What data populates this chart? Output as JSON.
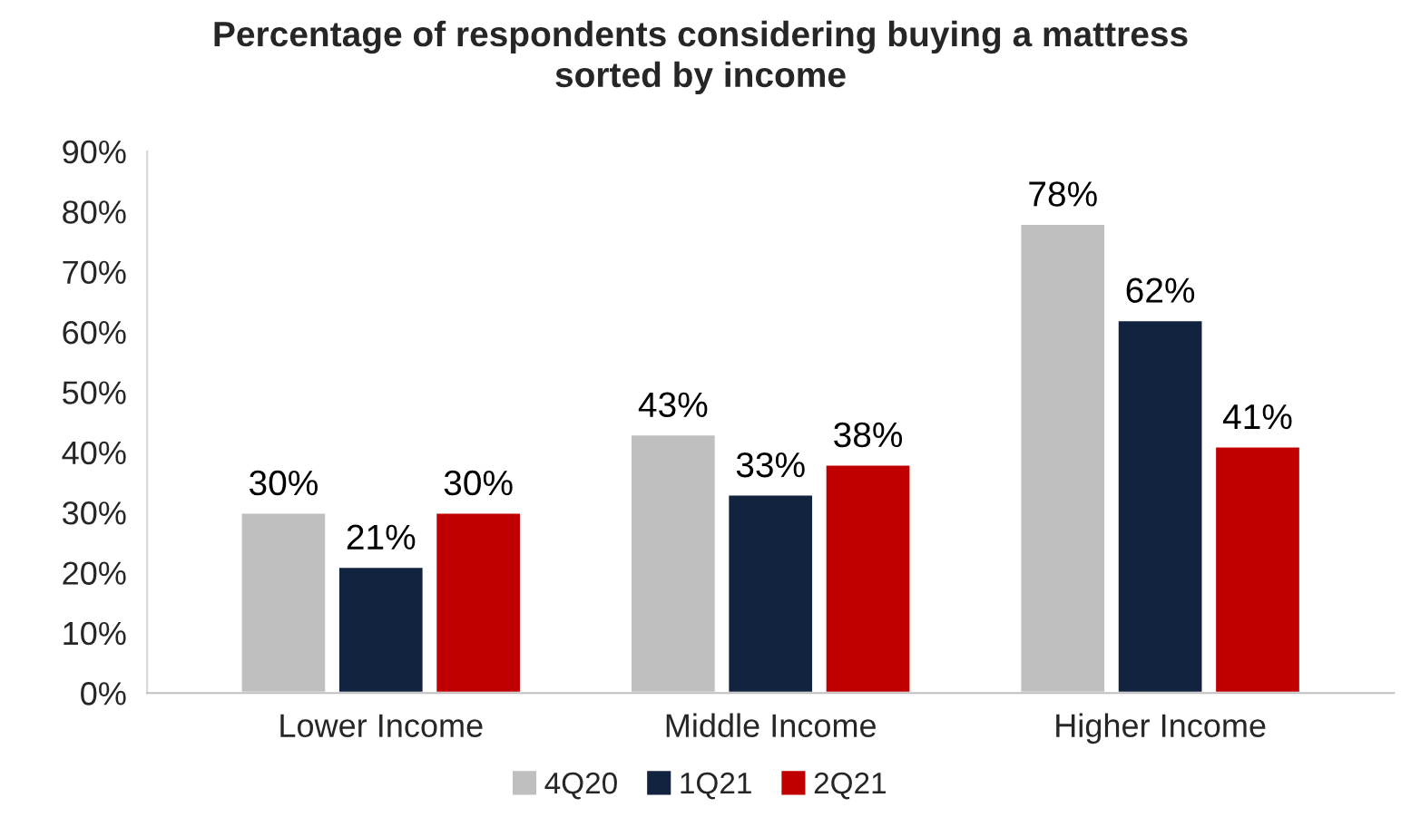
{
  "chart_data": {
    "type": "bar",
    "title": "Percentage of respondents considering buying a mattress\nsorted by income",
    "categories": [
      "Lower Income",
      "Middle Income",
      "Higher Income"
    ],
    "series": [
      {
        "name": "4Q20",
        "color": "#bfbfbf",
        "values": [
          30,
          43,
          78
        ],
        "value_labels": [
          "30%",
          "43%",
          "78%"
        ]
      },
      {
        "name": "1Q21",
        "color": "#12233f",
        "values": [
          21,
          33,
          62
        ],
        "value_labels": [
          "21%",
          "33%",
          "62%"
        ]
      },
      {
        "name": "2Q21",
        "color": "#c00000",
        "values": [
          30,
          38,
          41
        ],
        "value_labels": [
          "30%",
          "38%",
          "41%"
        ]
      }
    ],
    "ylim": [
      0,
      90
    ],
    "yticks": [
      {
        "value": 0,
        "label": "0%"
      },
      {
        "value": 10,
        "label": "10%"
      },
      {
        "value": 20,
        "label": "20%"
      },
      {
        "value": 30,
        "label": "30%"
      },
      {
        "value": 40,
        "label": "40%"
      },
      {
        "value": 50,
        "label": "50%"
      },
      {
        "value": 60,
        "label": "60%"
      },
      {
        "value": 70,
        "label": "70%"
      },
      {
        "value": 80,
        "label": "80%"
      },
      {
        "value": 90,
        "label": "90%"
      }
    ],
    "grid": false,
    "legend": "bottom"
  }
}
